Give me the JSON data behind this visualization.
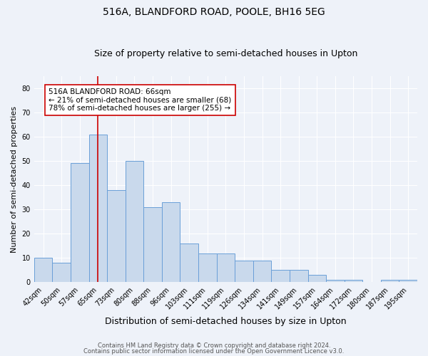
{
  "title1": "516A, BLANDFORD ROAD, POOLE, BH16 5EG",
  "title2": "Size of property relative to semi-detached houses in Upton",
  "xlabel": "Distribution of semi-detached houses by size in Upton",
  "ylabel": "Number of semi-detached properties",
  "categories": [
    "42sqm",
    "50sqm",
    "57sqm",
    "65sqm",
    "73sqm",
    "80sqm",
    "88sqm",
    "96sqm",
    "103sqm",
    "111sqm",
    "119sqm",
    "126sqm",
    "134sqm",
    "141sqm",
    "149sqm",
    "157sqm",
    "164sqm",
    "172sqm",
    "180sqm",
    "187sqm",
    "195sqm"
  ],
  "values": [
    10,
    8,
    49,
    61,
    38,
    50,
    31,
    33,
    16,
    12,
    12,
    9,
    9,
    5,
    5,
    3,
    1,
    1,
    0,
    1,
    1
  ],
  "bar_color": "#c9d9ec",
  "bar_edge_color": "#6a9fd8",
  "vline_x": 3.0,
  "vline_color": "#cc0000",
  "annotation_text": "516A BLANDFORD ROAD: 66sqm\n← 21% of semi-detached houses are smaller (68)\n78% of semi-detached houses are larger (255) →",
  "box_color": "white",
  "box_edge_color": "#cc0000",
  "ylim": [
    0,
    85
  ],
  "yticks": [
    0,
    10,
    20,
    30,
    40,
    50,
    60,
    70,
    80
  ],
  "footer1": "Contains HM Land Registry data © Crown copyright and database right 2024.",
  "footer2": "Contains public sector information licensed under the Open Government Licence v3.0.",
  "background_color": "#eef2f9",
  "grid_color": "#ffffff",
  "title_fontsize": 10,
  "subtitle_fontsize": 9,
  "tick_fontsize": 7,
  "ylabel_fontsize": 8,
  "xlabel_fontsize": 9,
  "footer_fontsize": 6,
  "ann_fontsize": 7.5
}
